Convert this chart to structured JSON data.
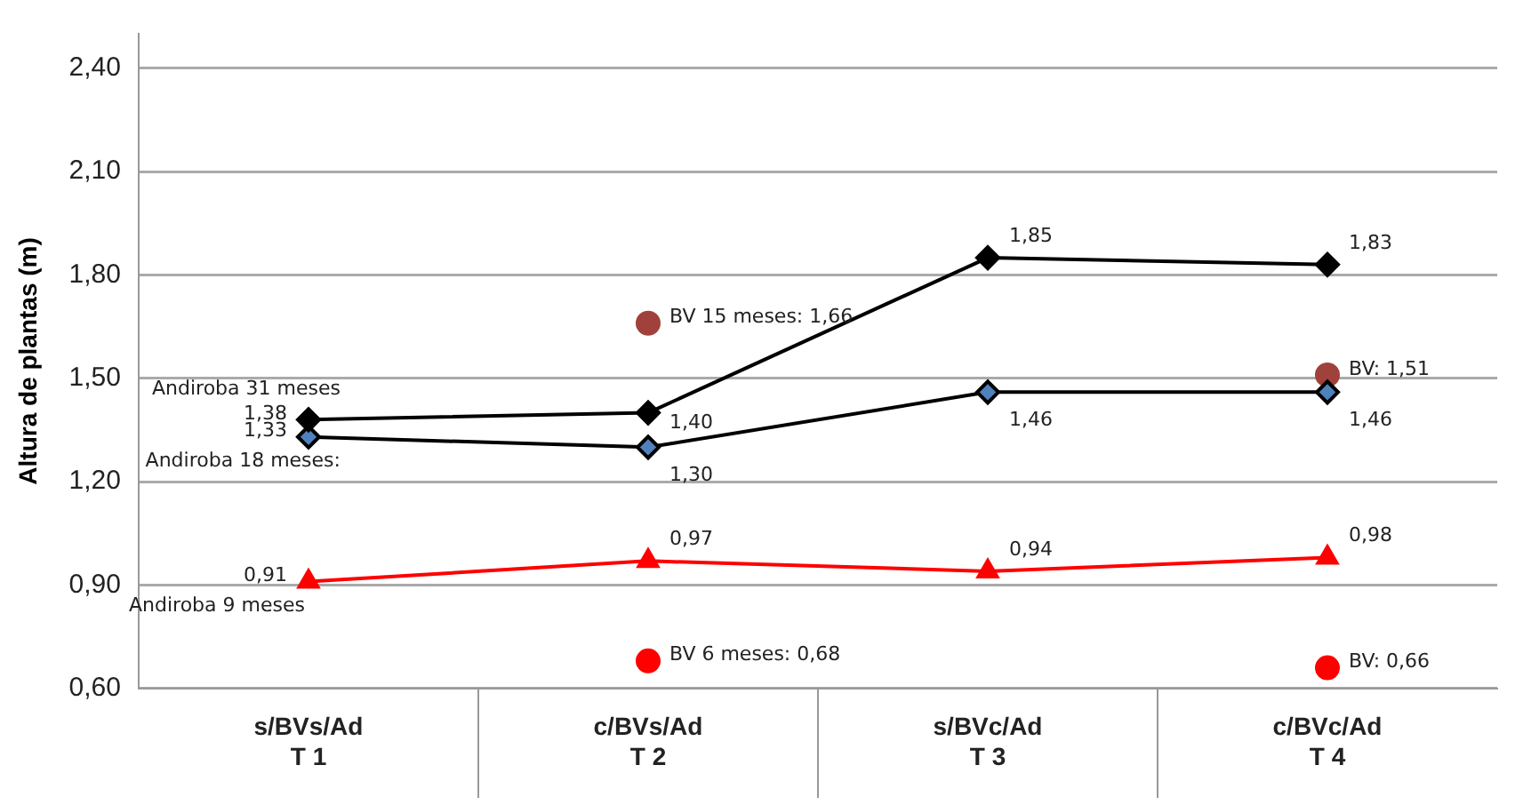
{
  "chart_data": {
    "type": "line",
    "ylabel": "Altura de plantas (m)",
    "categories": [
      "s/BVs/Ad\nT 1",
      "c/BVs/Ad\nT 2",
      "s/BVc/Ad\nT 3",
      "c/BVc/Ad\nT 4"
    ],
    "ylim": [
      0.6,
      2.5
    ],
    "yticks": [
      {
        "value": 0.6,
        "label": "0,60"
      },
      {
        "value": 0.9,
        "label": "0,90"
      },
      {
        "value": 1.2,
        "label": "1,20"
      },
      {
        "value": 1.5,
        "label": "1,50"
      },
      {
        "value": 1.8,
        "label": "1,80"
      },
      {
        "value": 2.1,
        "label": "2,10"
      },
      {
        "value": 2.4,
        "label": "2,40"
      }
    ],
    "grid": "y",
    "legend": false,
    "series": [
      {
        "name": "Andiroba 31 meses",
        "marker": "diamond",
        "color": "#000000",
        "values": [
          1.38,
          1.4,
          1.85,
          1.83
        ],
        "value_labels": [
          "1,38",
          "1,40",
          "1,85",
          "1,83"
        ]
      },
      {
        "name": "Andiroba 18 meses:",
        "marker": "diamond",
        "color": "#4f81bd",
        "values": [
          1.33,
          1.3,
          1.46,
          1.46
        ],
        "value_labels": [
          "1,33",
          "1,30",
          "1,46",
          "1,46"
        ]
      },
      {
        "name": "Andiroba 9 meses",
        "marker": "triangle",
        "color": "#ff0000",
        "values": [
          0.91,
          0.97,
          0.94,
          0.98
        ],
        "value_labels": [
          "0,91",
          "0,97",
          "0,94",
          "0,98"
        ]
      },
      {
        "type": "scatter",
        "marker": "circle",
        "color": "#a0413c",
        "values": [
          null,
          1.66,
          null,
          1.51
        ],
        "value_labels": [
          null,
          "BV 15 meses: 1,66",
          null,
          "BV: 1,51"
        ]
      },
      {
        "type": "scatter",
        "marker": "circle",
        "color": "#ff0000",
        "values": [
          null,
          0.68,
          null,
          0.66
        ],
        "value_labels": [
          null,
          "BV 6 meses: 0,68",
          null,
          "BV: 0,66"
        ]
      }
    ]
  }
}
